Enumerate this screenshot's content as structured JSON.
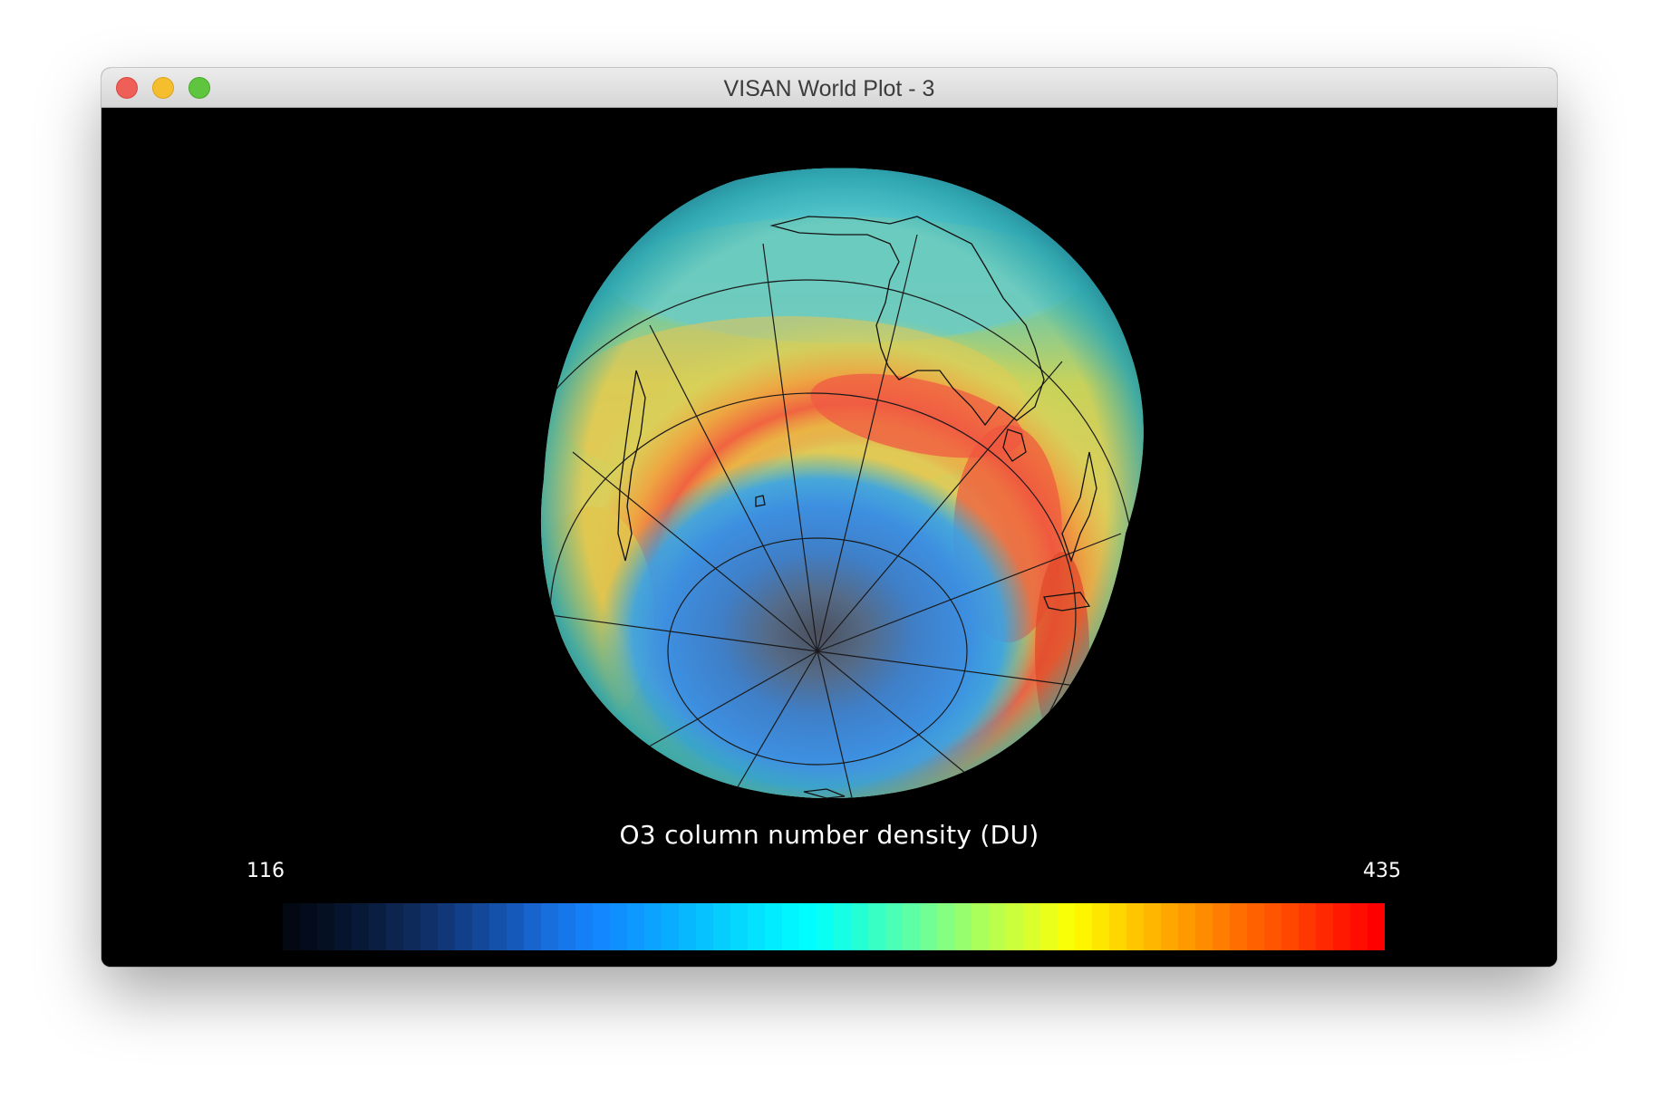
{
  "window": {
    "title": "VISAN World Plot - 3",
    "controls": {
      "close": "close-button",
      "minimize": "minimize-button",
      "zoom": "zoom-button"
    }
  },
  "plot": {
    "background": "#000000",
    "projection": "3D globe, south polar view",
    "colorbar": {
      "title": "O3 column number density (DU)",
      "min_label": "116",
      "max_label": "435",
      "min": 116,
      "max": 435,
      "colors": [
        "#030812",
        "#061228",
        "#0a1e42",
        "#0e2d62",
        "#12408a",
        "#1556b4",
        "#1770e0",
        "#1384ff",
        "#0d9aff",
        "#08b4ff",
        "#05d0ff",
        "#02eaff",
        "#00ffff",
        "#20ffd8",
        "#50ffb0",
        "#80ff85",
        "#b0ff55",
        "#d8ff30",
        "#ffff00",
        "#ffd800",
        "#ffb000",
        "#ff8c00",
        "#ff6800",
        "#ff4800",
        "#ff2000",
        "#ff0000"
      ]
    }
  }
}
